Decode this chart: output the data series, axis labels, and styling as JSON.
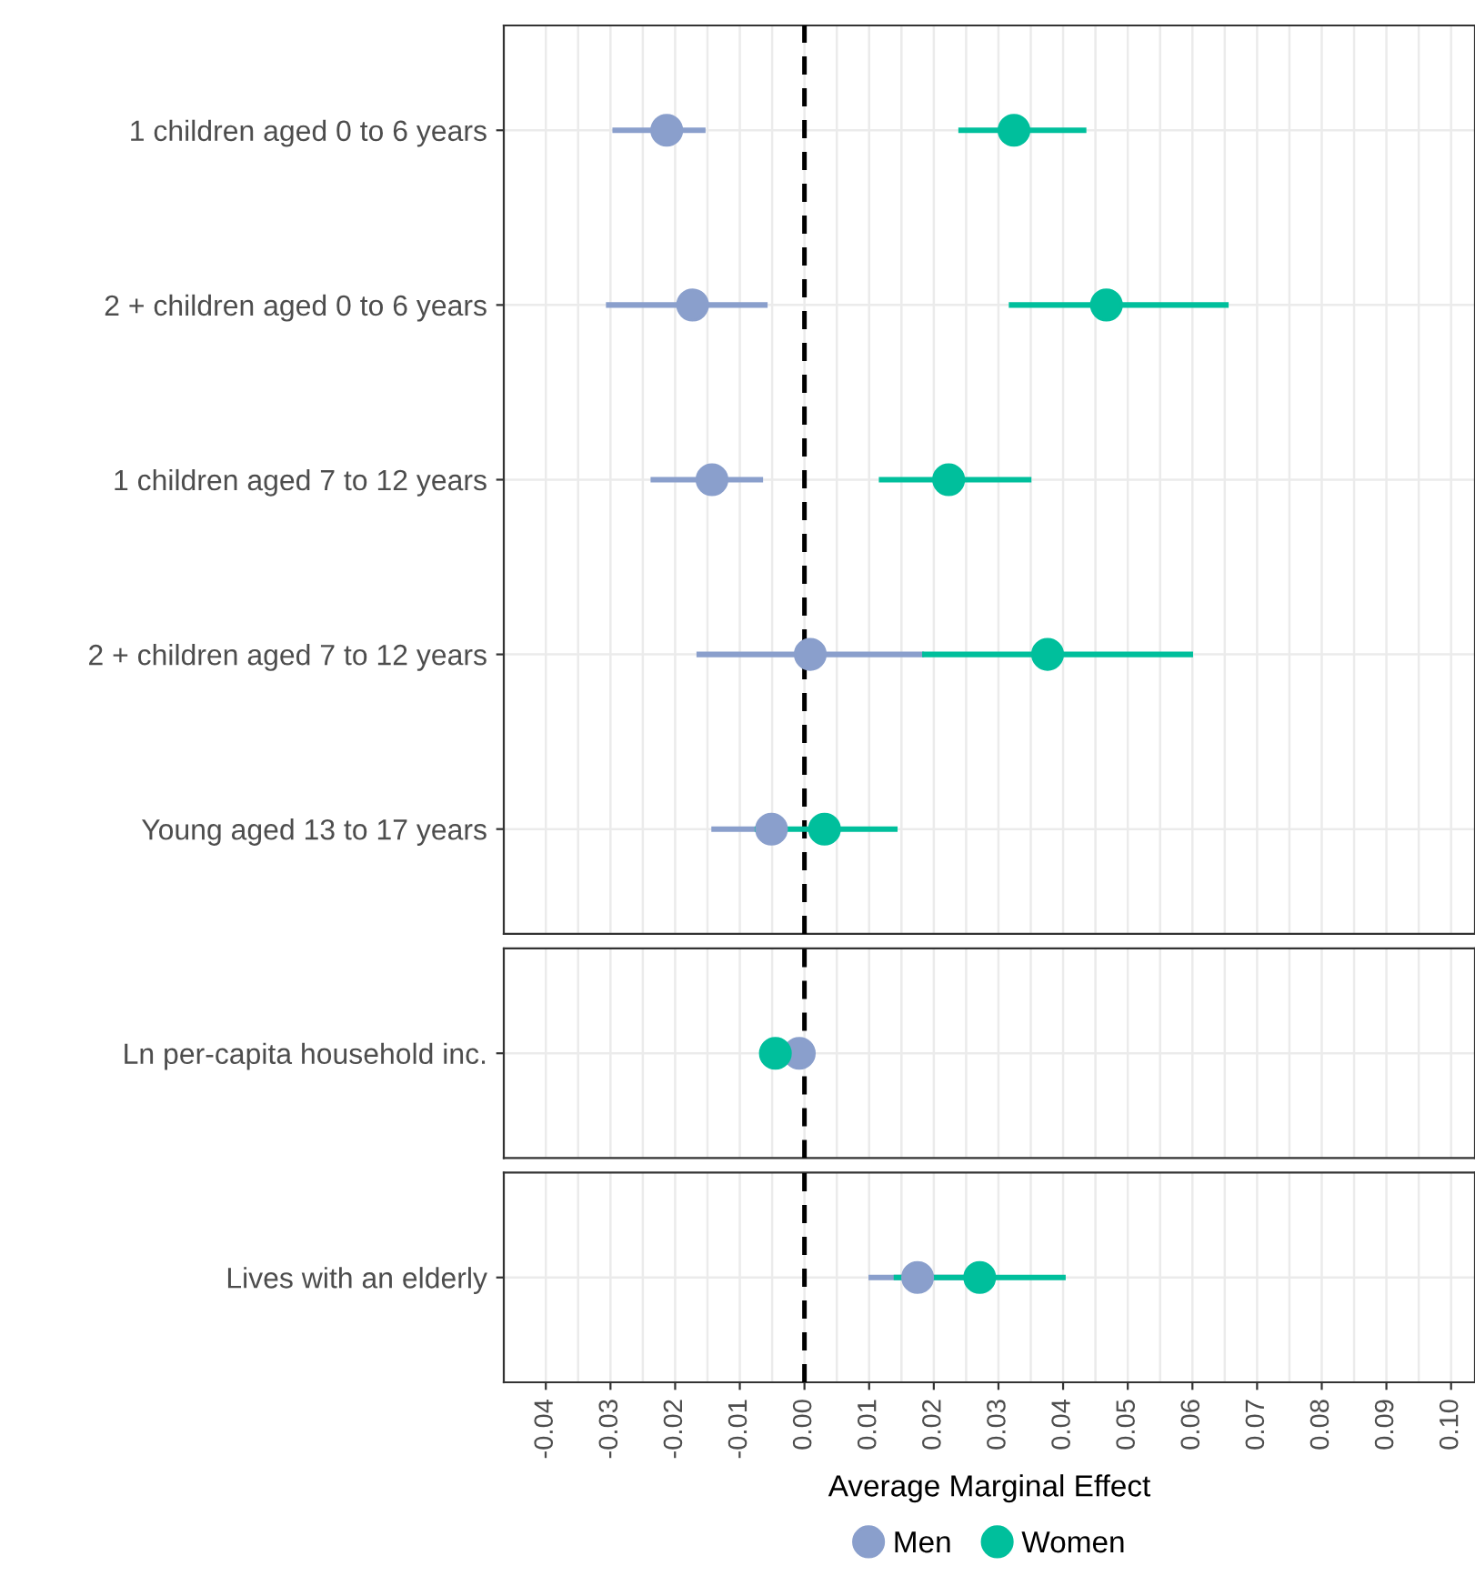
{
  "chart_data": [
    {
      "type": "scatter",
      "orientation": "horizontal",
      "categories": [
        "1 children aged 0 to 6 years",
        "2 + children aged 0 to 6 years",
        "1 children aged 7 to 12 years",
        "2 + children aged 7 to 12 years",
        "Young aged 13 to 17 years"
      ],
      "series": [
        {
          "name": "Men",
          "color": "#8a9fcc",
          "values": [
            -0.0213,
            -0.0173,
            -0.0143,
            0.0009,
            -0.0051
          ],
          "errors": [
            [
              -0.0297,
              -0.0153
            ],
            [
              -0.0307,
              -0.0057
            ],
            [
              -0.0238,
              -0.0064
            ],
            [
              -0.0167,
              0.0185
            ],
            [
              -0.0144,
              -0.0051
            ]
          ]
        },
        {
          "name": "Women",
          "color": "#00bf9c",
          "values": [
            0.0324,
            0.0467,
            0.0223,
            0.0376,
            0.0031
          ],
          "errors": [
            [
              0.0238,
              0.0436
            ],
            [
              0.0316,
              0.0656
            ],
            [
              0.0115,
              0.0351
            ],
            [
              0.0182,
              0.0601
            ],
            [
              -0.0077,
              0.0144
            ]
          ]
        }
      ],
      "xlim": [
        -0.0465,
        0.1037
      ],
      "xticks": [
        {
          "value": -0.04,
          "label": null
        },
        {
          "value": -0.03,
          "label": null
        },
        {
          "value": -0.02,
          "label": null
        },
        {
          "value": -0.01,
          "label": null
        },
        {
          "value": 0,
          "label": null
        },
        {
          "value": 0.01,
          "label": null
        },
        {
          "value": 0.02,
          "label": null
        },
        {
          "value": 0.03,
          "label": null
        },
        {
          "value": 0.04,
          "label": null
        },
        {
          "value": 0.05,
          "label": null
        },
        {
          "value": 0.06,
          "label": null
        },
        {
          "value": 0.07,
          "label": null
        },
        {
          "value": 0.08,
          "label": null
        },
        {
          "value": 0.09,
          "label": null
        },
        {
          "value": 0.1,
          "label": null
        }
      ],
      "ref_lines": [
        {
          "axis": "x",
          "value": 0,
          "line_style": "dashed",
          "color": "#000000"
        }
      ],
      "grid": true,
      "marker": "circle",
      "tick_labels": "y",
      "legend": "bottom"
    },
    {
      "type": "scatter",
      "orientation": "horizontal",
      "categories": [
        "Ln per-capita household inc."
      ],
      "series": [
        {
          "color": "#8a9fcc",
          "values": [
            -0.0008
          ]
        },
        {
          "color": "#00bf9c",
          "values": [
            -0.0045
          ]
        }
      ],
      "xlim": [
        -0.0465,
        0.1037
      ],
      "xticks": [
        {
          "value": -0.04,
          "label": null
        },
        {
          "value": -0.03,
          "label": null
        },
        {
          "value": -0.02,
          "label": null
        },
        {
          "value": -0.01,
          "label": null
        },
        {
          "value": 0,
          "label": null
        },
        {
          "value": 0.01,
          "label": null
        },
        {
          "value": 0.02,
          "label": null
        },
        {
          "value": 0.03,
          "label": null
        },
        {
          "value": 0.04,
          "label": null
        },
        {
          "value": 0.05,
          "label": null
        },
        {
          "value": 0.06,
          "label": null
        },
        {
          "value": 0.07,
          "label": null
        },
        {
          "value": 0.08,
          "label": null
        },
        {
          "value": 0.09,
          "label": null
        },
        {
          "value": 0.1,
          "label": null
        }
      ],
      "ref_lines": [
        {
          "axis": "x",
          "value": 0,
          "line_style": "dashed",
          "color": "#000000"
        }
      ],
      "grid": true,
      "marker": "circle",
      "tick_labels": "y"
    },
    {
      "type": "scatter",
      "orientation": "horizontal",
      "categories": [
        "Lives with an elderly"
      ],
      "series": [
        {
          "color": "#8a9fcc",
          "values": [
            0.0175
          ],
          "errors": [
            [
              0.0099,
              0.0251
            ]
          ]
        },
        {
          "color": "#00bf9c",
          "values": [
            0.0271
          ],
          "errors": [
            [
              0.0138,
              0.0404
            ]
          ]
        }
      ],
      "xlim": [
        -0.0465,
        0.1037
      ],
      "xticks": [
        {
          "value": -0.04,
          "label": "-0.04"
        },
        {
          "value": -0.03,
          "label": "-0.03"
        },
        {
          "value": -0.02,
          "label": "-0.02"
        },
        {
          "value": -0.01,
          "label": "-0.01"
        },
        {
          "value": 0,
          "label": "0.00"
        },
        {
          "value": 0.01,
          "label": "0.01"
        },
        {
          "value": 0.02,
          "label": "0.02"
        },
        {
          "value": 0.03,
          "label": "0.03"
        },
        {
          "value": 0.04,
          "label": "0.04"
        },
        {
          "value": 0.05,
          "label": "0.05"
        },
        {
          "value": 0.06,
          "label": "0.06"
        },
        {
          "value": 0.07,
          "label": "0.07"
        },
        {
          "value": 0.08,
          "label": "0.08"
        },
        {
          "value": 0.09,
          "label": "0.09"
        },
        {
          "value": 0.1,
          "label": "0.10"
        }
      ],
      "xlabel": "Average Marginal Effect",
      "ref_lines": [
        {
          "axis": "x",
          "value": 0,
          "line_style": "dashed",
          "color": "#000000"
        }
      ],
      "grid": true,
      "marker": "circle"
    }
  ]
}
